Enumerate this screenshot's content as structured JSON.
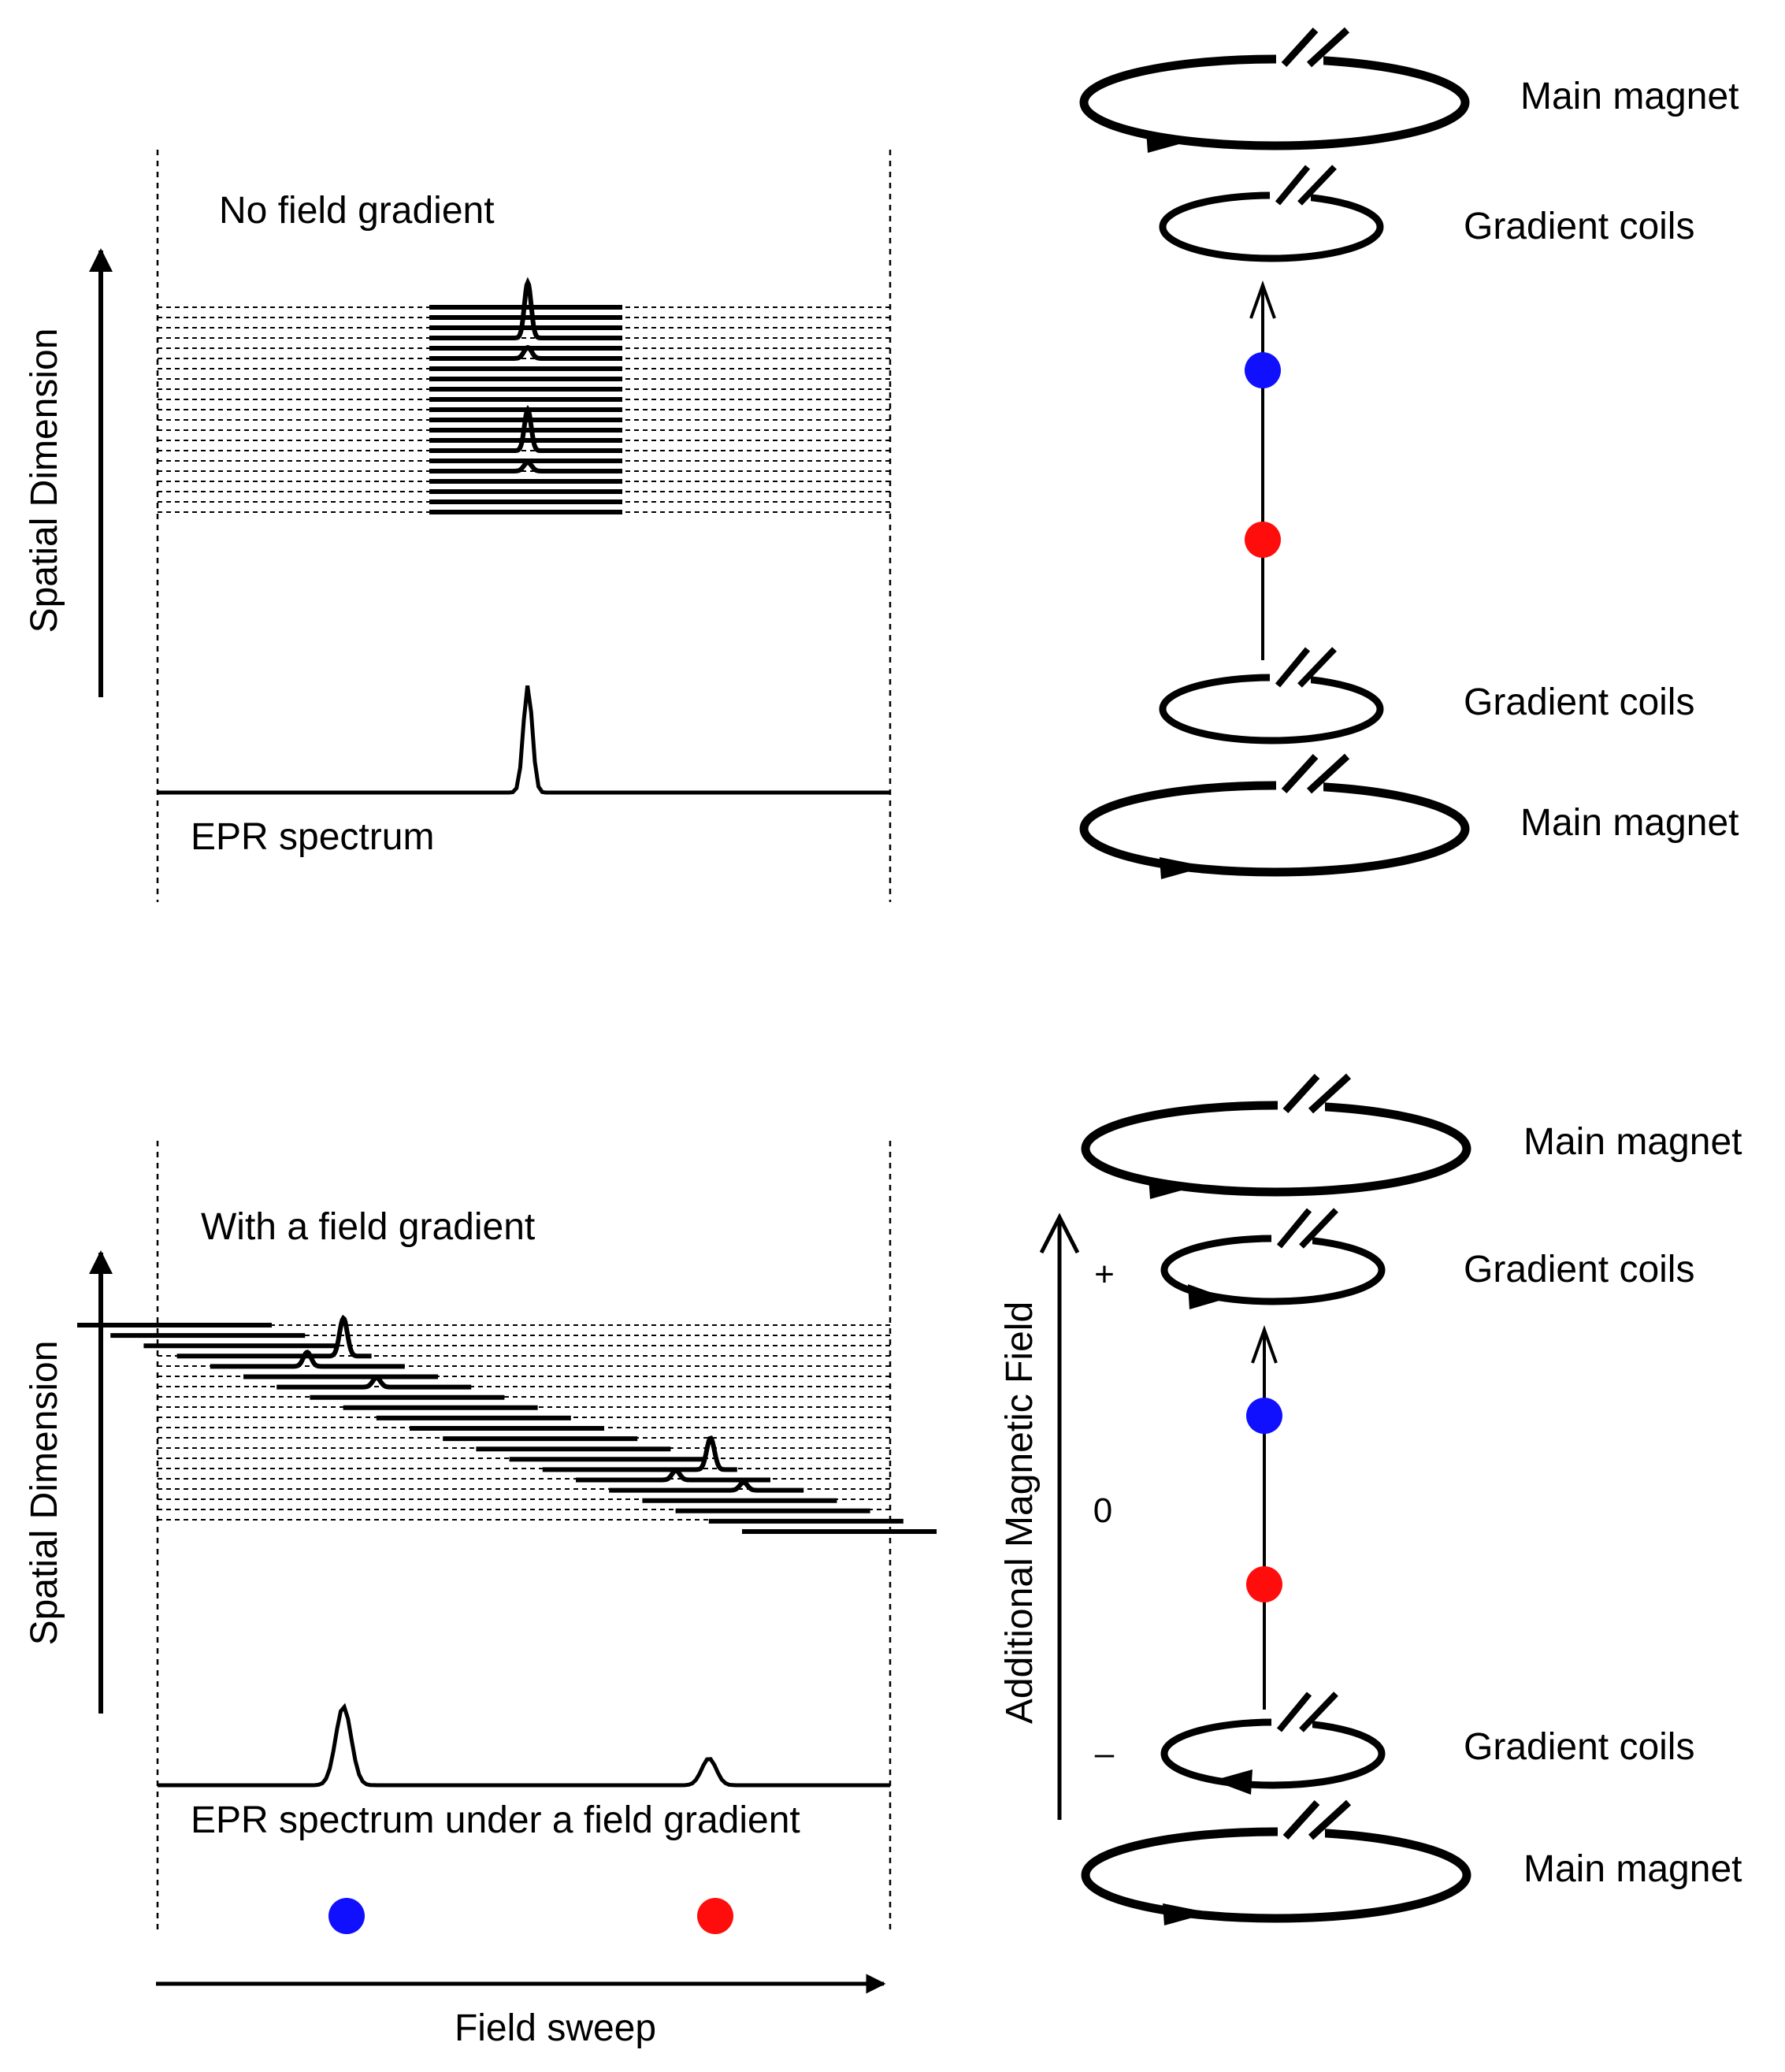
{
  "top_panel": {
    "title": "No field gradient",
    "y_axis_label": "Spatial Dimension",
    "spectrum_label": "EPR spectrum"
  },
  "bottom_panel": {
    "title": "With a field gradient",
    "y_axis_label": "Spatial Dimension",
    "spectrum_label": "EPR spectrum under a field gradient",
    "x_axis_label": "Field sweep"
  },
  "top_magnet": {
    "upper_main_label": "Main magnet",
    "upper_gradient_label": "Gradient coils",
    "lower_gradient_label": "Gradient coils",
    "lower_main_label": "Main magnet"
  },
  "bottom_magnet": {
    "upper_main_label": "Main magnet",
    "upper_gradient_label": "Gradient coils",
    "lower_gradient_label": "Gradient coils",
    "lower_main_label": "Main magnet",
    "field_axis_label": "Additional Magnetic Field",
    "plus_sign": "+",
    "zero_label": "0",
    "minus_sign": "–"
  },
  "colors": {
    "blue_dot": "#1010ff",
    "red_dot": "#ff0d0d",
    "ink": "#000000"
  }
}
